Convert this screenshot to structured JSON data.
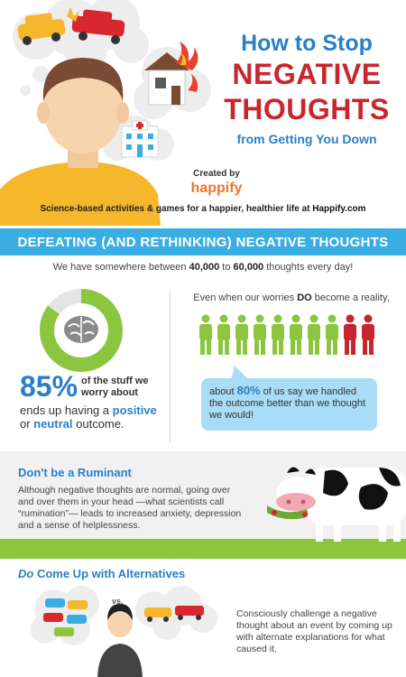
{
  "header": {
    "title_line1": "How to Stop",
    "title_line2": "NEGATIVE",
    "title_line3": "THOUGHTS",
    "title_line4": "from Getting You Down",
    "created_by": "Created by",
    "brand": "happify",
    "tagline_prefix": "Science-based activities & games for a happier, healthier life at ",
    "tagline_link": "Happify.com"
  },
  "banner": {
    "title": "DEFEATING (AND RETHINKING) NEGATIVE THOUGHTS"
  },
  "stats": {
    "thoughts_prefix": "We have somewhere between ",
    "thoughts_low": "40,000",
    "thoughts_mid": " to ",
    "thoughts_high": "60,000",
    "thoughts_suffix": " thoughts every day!",
    "worry_pct": "85%",
    "worry_pct_value": 85,
    "worry_text": "of the stuff we worry about",
    "outcome_prefix": "ends up having a ",
    "outcome_positive": "positive",
    "outcome_mid": " or ",
    "outcome_neutral": "neutral",
    "outcome_suffix": " outcome.",
    "reality_prefix": "Even when our worries ",
    "reality_bold": "DO",
    "reality_suffix": " become a reality,",
    "handled_prefix": "about ",
    "handled_pct": "80%",
    "handled_suffix": " of us say we handled the outcome better than we thought we would!",
    "people_total": 10,
    "people_green": 8
  },
  "ruminant": {
    "title": "Don't be a Ruminant",
    "body": "Although negative thoughts are normal, going over and over them in your head —what scientists call “rumination”— leads to increased anxiety, depression and a sense of helplessness."
  },
  "alternatives": {
    "title_italic": "Do",
    "title_rest": " Come Up with Alternatives",
    "vs": "vs.",
    "body": "Consciously challenge a negative thought about an event by coming up with alternate explanations for what caused it."
  },
  "colors": {
    "blue": "#2a7fc7",
    "red": "#c8262d",
    "green": "#8cc63f",
    "orange": "#f0742e",
    "banner": "#3aaee2"
  }
}
